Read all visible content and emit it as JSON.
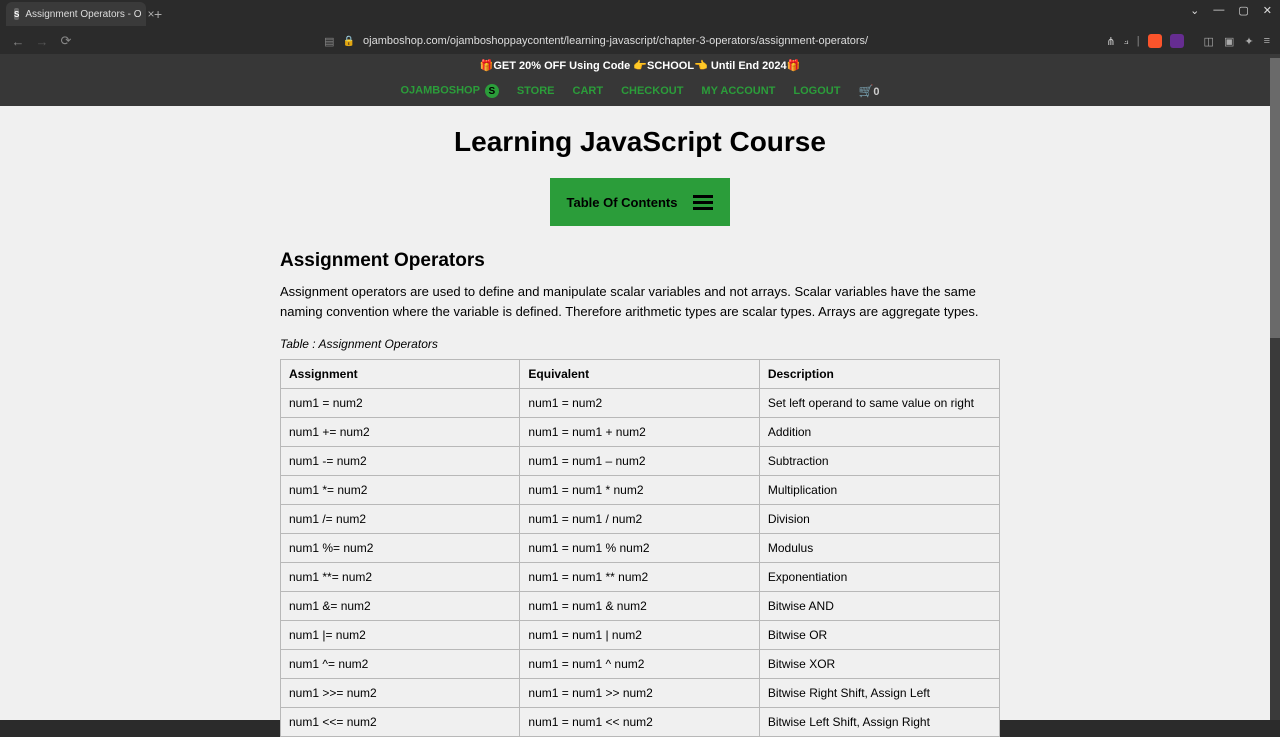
{
  "browser": {
    "tab_title": "Assignment Operators - O",
    "url": "ojamboshop.com/ojamboshoppaycontent/learning-javascript/chapter-3-operators/assignment-operators/"
  },
  "site": {
    "promo": "🎁GET 20% OFF Using Code 👉SCHOOL👈 Until End 2024🎁",
    "nav": {
      "home": "OJAMBOSHOP",
      "store": "STORE",
      "cart": "CART",
      "checkout": "CHECKOUT",
      "account": "MY ACCOUNT",
      "logout": "LOGOUT",
      "cart_count": "0"
    }
  },
  "page": {
    "title": "Learning JavaScript Course",
    "toc_label": "Table Of Contents",
    "section_title": "Assignment Operators",
    "section_desc": "Assignment operators are used to define and manipulate scalar variables and not arrays. Scalar variables have the same naming convention where the variable is defined. Therefore arithmetic types are scalar types. Arrays are aggregate types.",
    "table_caption": "Table : Assignment Operators",
    "table": {
      "headers": [
        "Assignment",
        "Equivalent",
        "Description"
      ],
      "rows": [
        [
          "num1 = num2",
          "num1 = num2",
          "Set left operand to same value on right"
        ],
        [
          "num1 += num2",
          "num1 = num1 + num2",
          "Addition"
        ],
        [
          "num1 -= num2",
          "num1 = num1 – num2",
          "Subtraction"
        ],
        [
          "num1 *= num2",
          "num1 = num1 * num2",
          "Multiplication"
        ],
        [
          "num1 /= num2",
          "num1 = num1 / num2",
          "Division"
        ],
        [
          "num1 %= num2",
          "num1 = num1 % num2",
          "Modulus"
        ],
        [
          "num1 **= num2",
          "num1 = num1 ** num2",
          "Exponentiation"
        ],
        [
          "num1 &= num2",
          "num1 = num1 & num2",
          "Bitwise AND"
        ],
        [
          "num1 |= num2",
          "num1 = num1 | num2",
          "Bitwise OR"
        ],
        [
          "num1 ^= num2",
          "num1 = num1 ^ num2",
          "Bitwise XOR"
        ],
        [
          "num1 >>= num2",
          "num1 = num1 >> num2",
          "Bitwise Right Shift, Assign Left"
        ],
        [
          "num1 <<= num2",
          "num1 = num1 << num2",
          "Bitwise Left Shift, Assign Right"
        ]
      ]
    }
  },
  "colors": {
    "chrome_bg": "#2b2b2b",
    "site_header_bg": "#373737",
    "accent_green": "#2b9d3a",
    "page_bg": "#f0f0f0",
    "border": "#b8b8b8"
  }
}
